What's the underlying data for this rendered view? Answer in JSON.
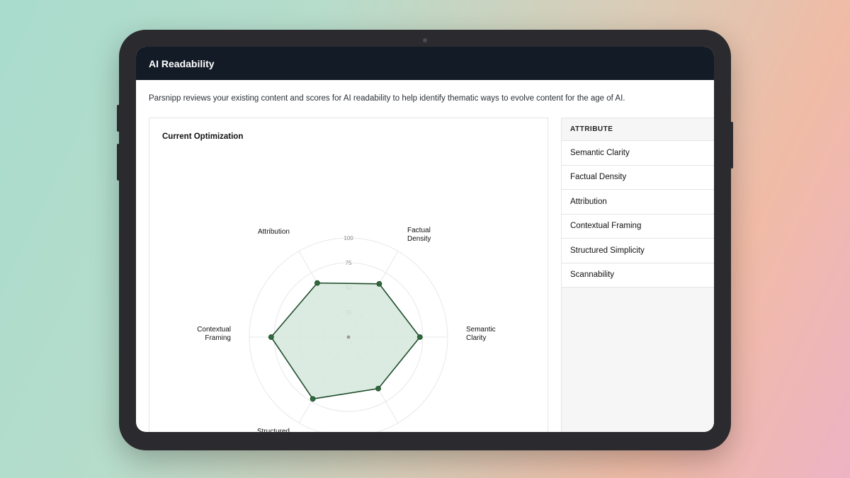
{
  "app": {
    "title": "AI Readability"
  },
  "description": "Parsnipp reviews your existing content and scores for AI readability to help identify thematic ways to evolve content for the age of AI.",
  "chart_card": {
    "title": "Current Optimization"
  },
  "attributes_table": {
    "header": "ATTRIBUTE",
    "rows": [
      "Semantic Clarity",
      "Factual Density",
      "Attribution",
      "Contextual Framing",
      "Structured Simplicity",
      "Scannability"
    ]
  },
  "chart_data": {
    "type": "radar",
    "title": "",
    "axes": [
      "Semantic Clarity",
      "Factual Density",
      "Attribution",
      "Contextual Framing",
      "Structured Simplicity",
      "Scannability"
    ],
    "axis_label_lines": [
      [
        "Semantic",
        "Clarity"
      ],
      [
        "Factual",
        "Density"
      ],
      [
        "Attribution"
      ],
      [
        "Contextual",
        "Framing"
      ],
      [
        "Structured"
      ],
      [
        ""
      ]
    ],
    "rlim": [
      0,
      100
    ],
    "rticks": [
      25,
      50,
      75,
      100
    ],
    "series": [
      {
        "values": [
          72,
          62,
          63,
          78,
          72,
          60
        ]
      }
    ],
    "colors": {
      "line": "#1f4d2b",
      "fill": "#d6e8dc",
      "point": "#2f6b3c",
      "grid": "#e6e8ea"
    }
  }
}
